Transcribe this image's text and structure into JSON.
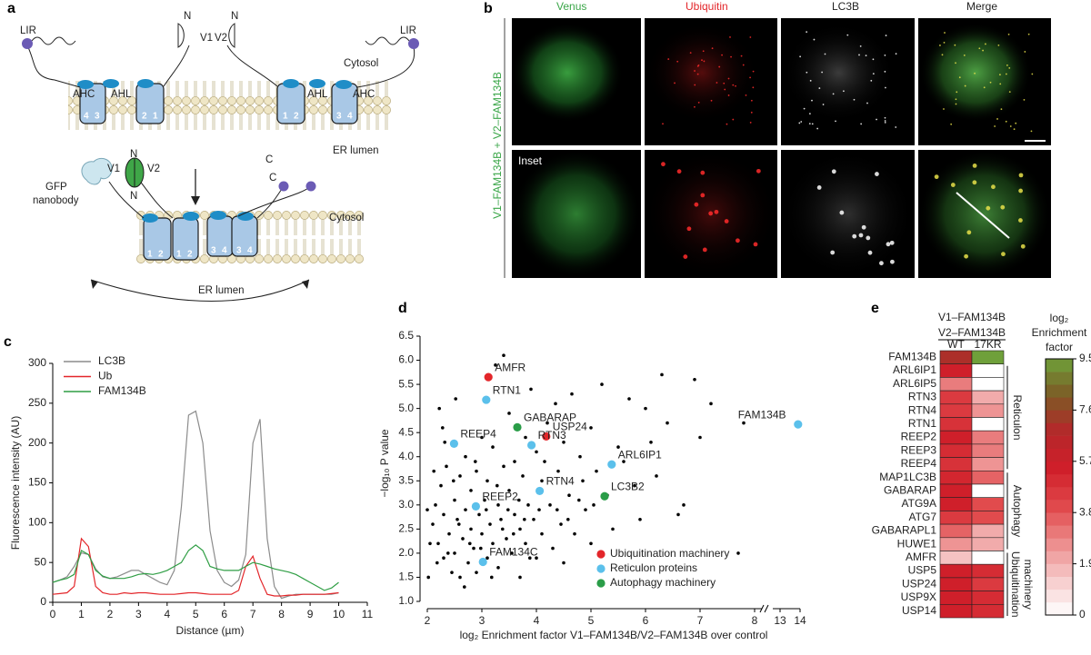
{
  "panels": [
    "a",
    "b",
    "c",
    "d",
    "e"
  ],
  "diagram_a": {
    "labels": [
      "LIR",
      "N",
      "V1",
      "V2",
      "N",
      "LIR",
      "Cytosol",
      "AHC",
      "AHL",
      "AHL",
      "AHC",
      "4",
      "3",
      "2",
      "1",
      "1",
      "2",
      "3",
      "4",
      "ER lumen",
      "N",
      "V1",
      "V2",
      "N",
      "C",
      "C",
      "GFP",
      "nanobody",
      "Cytosol",
      "1",
      "2",
      "1",
      "2",
      "3",
      "4",
      "3",
      "4",
      "ER lumen"
    ]
  },
  "micrographs_b": {
    "columns": [
      "Venus",
      "Ubiquitin",
      "LC3B",
      "Merge"
    ],
    "row_label": "V1–FAM134B + V2–FAM134B",
    "inset_label": "Inset"
  },
  "chart_data": [
    {
      "type": "line",
      "ylabel": "Fluorescence intensity (AU)",
      "xlabel": "Distance (µm)",
      "x": [
        0,
        0.25,
        0.5,
        0.75,
        1,
        1.25,
        1.5,
        1.75,
        2,
        2.25,
        2.5,
        2.75,
        3,
        3.25,
        3.5,
        3.75,
        4,
        4.25,
        4.5,
        4.75,
        5,
        5.25,
        5.5,
        5.75,
        6,
        6.25,
        6.5,
        6.75,
        7,
        7.25,
        7.5,
        7.75,
        8,
        8.25,
        8.5,
        8.75,
        9,
        9.25,
        9.5,
        9.75,
        10
      ],
      "series": [
        {
          "name": "LC3B",
          "color": "#8c8c8c",
          "values": [
            25,
            28,
            32,
            45,
            62,
            60,
            42,
            32,
            30,
            32,
            36,
            40,
            40,
            35,
            30,
            25,
            22,
            40,
            120,
            235,
            240,
            200,
            90,
            40,
            25,
            20,
            28,
            60,
            200,
            230,
            80,
            20,
            5,
            8,
            10,
            10,
            10,
            10,
            10,
            10,
            12
          ]
        },
        {
          "name": "Ub",
          "color": "#e3262a",
          "values": [
            10,
            11,
            12,
            20,
            80,
            70,
            20,
            12,
            10,
            10,
            12,
            11,
            12,
            12,
            11,
            10,
            10,
            10,
            11,
            12,
            12,
            11,
            10,
            10,
            10,
            10,
            15,
            45,
            58,
            30,
            10,
            8,
            8,
            9,
            9,
            10,
            10,
            10,
            10,
            11,
            12
          ]
        },
        {
          "name": "FAM134B",
          "color": "#2f9e44",
          "values": [
            25,
            28,
            30,
            35,
            65,
            60,
            40,
            33,
            30,
            30,
            30,
            32,
            35,
            36,
            35,
            37,
            40,
            45,
            50,
            65,
            72,
            65,
            45,
            42,
            40,
            40,
            40,
            45,
            50,
            48,
            45,
            42,
            40,
            38,
            35,
            30,
            25,
            20,
            15,
            18,
            25
          ]
        }
      ],
      "xlim": [
        0,
        11
      ],
      "xticks": [
        0,
        1,
        2,
        3,
        4,
        5,
        6,
        7,
        8,
        9,
        10,
        11
      ],
      "ylim": [
        0,
        300
      ],
      "yticks": [
        0,
        50,
        100,
        150,
        200,
        250,
        300
      ],
      "legend": "upper-left"
    },
    {
      "type": "scatter",
      "ylabel": "−log₁₀ P value",
      "xlabel": "log₂ Enrichment factor V1–FAM134B/V2–FAM134B over control",
      "series": [
        {
          "color": "#000000",
          "x": [
            2.1,
            2.15,
            2.2,
            2.25,
            2.3,
            2.3,
            2.35,
            2.4,
            2.45,
            2.5,
            2.5,
            2.55,
            2.6,
            2.6,
            2.65,
            2.7,
            2.7,
            2.75,
            2.8,
            2.8,
            2.85,
            2.9,
            2.9,
            2.95,
            3.0,
            3.0,
            3.05,
            3.1,
            3.1,
            3.15,
            3.2,
            3.2,
            3.25,
            3.3,
            3.3,
            3.35,
            3.4,
            3.4,
            3.45,
            3.5,
            3.5,
            3.55,
            3.6,
            3.6,
            3.7,
            3.7,
            3.75,
            3.8,
            3.8,
            3.85,
            3.9,
            3.95,
            4.0,
            4.0,
            4.1,
            4.1,
            4.2,
            4.25,
            4.3,
            4.35,
            4.4,
            4.45,
            4.5,
            4.5,
            4.6,
            4.65,
            4.7,
            4.8,
            4.85,
            4.9,
            5.0,
            5.0,
            5.1,
            5.2,
            5.3,
            5.4,
            5.5,
            5.6,
            5.7,
            5.8,
            5.9,
            6.0,
            6.1,
            6.2,
            6.3,
            6.4,
            6.6,
            6.7,
            6.9,
            7.2,
            7.0,
            7.7,
            7.8,
            2.0,
            2.05,
            2.12,
            2.18,
            2.28,
            2.38,
            2.48,
            2.58,
            2.68,
            2.78,
            2.88,
            2.98,
            3.08,
            3.18,
            3.28,
            3.38,
            3.48,
            3.58,
            3.68,
            3.78,
            3.88,
            4.05,
            4.15,
            4.38,
            4.58,
            4.78,
            5.05,
            2.02,
            2.22,
            2.52,
            2.32
          ],
          "values": [
            2.6,
            3.0,
            2.2,
            3.4,
            1.9,
            2.8,
            3.8,
            2.4,
            1.6,
            3.1,
            2.0,
            2.7,
            3.6,
            1.5,
            2.3,
            4.0,
            2.9,
            1.8,
            3.3,
            2.5,
            2.1,
            3.7,
            1.6,
            2.8,
            4.4,
            2.4,
            3.1,
            1.9,
            3.5,
            2.6,
            4.2,
            2.2,
            5.9,
            3.0,
            1.7,
            2.7,
            3.8,
            6.1,
            2.3,
            4.9,
            3.3,
            2.0,
            2.8,
            3.9,
            2.5,
            1.5,
            3.6,
            4.4,
            2.2,
            3.0,
            5.4,
            2.7,
            4.1,
            1.9,
            3.5,
            2.4,
            4.7,
            3.0,
            2.1,
            5.1,
            3.7,
            2.6,
            4.3,
            1.8,
            3.2,
            5.3,
            2.4,
            4.0,
            3.5,
            2.9,
            4.6,
            2.2,
            3.7,
            5.5,
            3.2,
            2.5,
            4.2,
            3.9,
            5.2,
            3.4,
            2.7,
            5.0,
            4.3,
            3.6,
            5.7,
            4.7,
            2.8,
            3.0,
            5.6,
            5.1,
            4.4,
            2.0,
            4.7,
            2.9,
            2.2,
            3.7,
            1.8,
            4.6,
            2.0,
            3.5,
            2.6,
            1.3,
            2.2,
            3.9,
            2.1,
            2.9,
            1.5,
            3.4,
            2.5,
            2.9,
            2.4,
            3.1,
            2.7,
            1.9,
            2.9,
            3.9,
            2.9,
            2.7,
            3.1,
            3.0,
            1.5,
            5.0,
            5.2,
            4.3
          ]
        },
        {
          "name": "Ubiquitination machinery",
          "color": "#e3262a",
          "x": [
            3.12,
            4.18
          ],
          "values": [
            5.65,
            4.42
          ],
          "labels": [
            "AMFR",
            "USP24"
          ]
        },
        {
          "name": "Reticulon proteins",
          "color": "#5bc0eb",
          "x": [
            3.08,
            2.49,
            3.91,
            5.38,
            4.06,
            2.89,
            3.02,
            13.9
          ],
          "values": [
            5.18,
            4.27,
            4.24,
            3.84,
            3.29,
            2.97,
            1.82,
            4.67
          ],
          "labels": [
            "RTN1",
            "REEP4",
            "RTN3",
            "ARL6IP1",
            "RTN4",
            "REEP2",
            "FAM134C",
            "FAM134B"
          ]
        },
        {
          "name": "Autophagy machinery",
          "color": "#2a9d48",
          "x": [
            3.65,
            5.25
          ],
          "values": [
            4.61,
            3.18
          ],
          "labels": [
            "GABARAP",
            "LC3B2"
          ]
        }
      ],
      "xlim": [
        2,
        14
      ],
      "x_break": [
        8,
        13
      ],
      "xticks": [
        2,
        3,
        4,
        5,
        6,
        7,
        8,
        13,
        14
      ],
      "ylim": [
        1,
        6.5
      ],
      "yticks": [
        {
          "value": 1,
          "label": "1.0"
        },
        1.5,
        {
          "value": 2,
          "label": "2.0"
        },
        2.5,
        {
          "value": 3,
          "label": "3.0"
        },
        3.5,
        {
          "value": 4,
          "label": "4.0"
        },
        4.5,
        {
          "value": 5,
          "label": "5.0"
        },
        5.5,
        {
          "value": 6,
          "label": "6.0"
        },
        6.5
      ],
      "legend": "lower-right"
    },
    {
      "type": "heatmap",
      "column_header": [
        "V1–FAM134B",
        "V2–FAM134B"
      ],
      "columns": [
        "WT",
        "17KR"
      ],
      "rows": [
        "FAM134B",
        "ARL6IP1",
        "ARL6IP5",
        "RTN3",
        "RTN4",
        "RTN1",
        "REEP2",
        "REEP3",
        "REEP4",
        "MAP1LC3B",
        "GABARAP",
        "ATG9A",
        "ATG7",
        "GABARAPL1",
        "HUWE1",
        "AMFR",
        "USP5",
        "USP24",
        "USP9X",
        "USP14"
      ],
      "values": [
        [
          7,
          9.5
        ],
        [
          5.5,
          0
        ],
        [
          3,
          0
        ],
        [
          4.5,
          2
        ],
        [
          4.5,
          2.5
        ],
        [
          4.8,
          0
        ],
        [
          5.5,
          3
        ],
        [
          5,
          3
        ],
        [
          4.8,
          2.5
        ],
        [
          5.2,
          3.5
        ],
        [
          5.5,
          0
        ],
        [
          5.5,
          4
        ],
        [
          4.5,
          4
        ],
        [
          3.5,
          2
        ],
        [
          2.5,
          2
        ],
        [
          1.5,
          0
        ],
        [
          5.5,
          5
        ],
        [
          5.5,
          4.5
        ],
        [
          5.5,
          5
        ],
        [
          5.5,
          5
        ]
      ],
      "row_group_labels": [
        "Reticulon",
        "Autophagy",
        "Ubiquitination",
        "machinery"
      ],
      "colorbar_title": [
        "log₂",
        "Enrichment",
        "factor"
      ],
      "zlim": [
        0,
        9.5
      ],
      "zticks": [
        0,
        1.9,
        3.8,
        5.7,
        7.6,
        9.5
      ],
      "colorscale": [
        "#ffffff",
        "#f6c9c9",
        "#ec8a8a",
        "#e0474a",
        "#d01f2a",
        "#b5272a",
        "#7d5a25",
        "#6fa03a"
      ]
    }
  ]
}
